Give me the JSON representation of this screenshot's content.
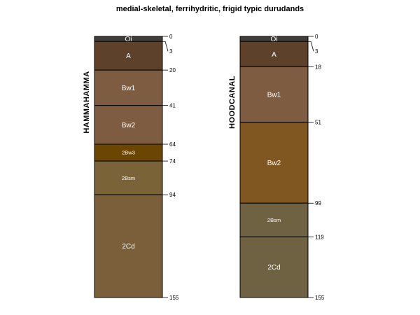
{
  "chart_data": {
    "type": "soil-profile",
    "title": "medial-skeletal, ferrihydritic, frigid typic durudands",
    "depth_unit": "cm",
    "max_depth": 155,
    "profiles": [
      {
        "name": "HAMMAHAMMA",
        "horizons": [
          {
            "name": "Oi",
            "top": 0,
            "bottom": 3,
            "color": "#3f3e3d",
            "label_size": "normal"
          },
          {
            "name": "A",
            "top": 3,
            "bottom": 20,
            "color": "#5e412b",
            "label_size": "normal"
          },
          {
            "name": "Bw1",
            "top": 20,
            "bottom": 41,
            "color": "#7d5c42",
            "label_size": "normal"
          },
          {
            "name": "Bw2",
            "top": 41,
            "bottom": 64,
            "color": "#7d5c42",
            "label_size": "normal"
          },
          {
            "name": "2Bw3",
            "top": 64,
            "bottom": 74,
            "color": "#6b4502",
            "label_size": "small"
          },
          {
            "name": "2Bsm",
            "top": 74,
            "bottom": 94,
            "color": "#7b6338",
            "label_size": "small"
          },
          {
            "name": "2Cd",
            "top": 94,
            "bottom": 155,
            "color": "#7a5f3a",
            "label_size": "normal"
          }
        ],
        "depth_ticks": [
          0,
          3,
          20,
          41,
          64,
          74,
          94,
          155
        ]
      },
      {
        "name": "HOODCANAL",
        "horizons": [
          {
            "name": "Oi",
            "top": 0,
            "bottom": 3,
            "color": "#3f3e3d",
            "label_size": "normal"
          },
          {
            "name": "A",
            "top": 3,
            "bottom": 18,
            "color": "#5e412b",
            "label_size": "normal"
          },
          {
            "name": "Bw1",
            "top": 18,
            "bottom": 51,
            "color": "#7d5c42",
            "label_size": "normal"
          },
          {
            "name": "Bw2",
            "top": 51,
            "bottom": 99,
            "color": "#805721",
            "label_size": "normal"
          },
          {
            "name": "2Bsm",
            "top": 99,
            "bottom": 119,
            "color": "#6e6242",
            "label_size": "small"
          },
          {
            "name": "2Cd",
            "top": 119,
            "bottom": 155,
            "color": "#6e6242",
            "label_size": "normal"
          }
        ],
        "depth_ticks": [
          0,
          3,
          18,
          51,
          99,
          119,
          155
        ]
      }
    ]
  }
}
